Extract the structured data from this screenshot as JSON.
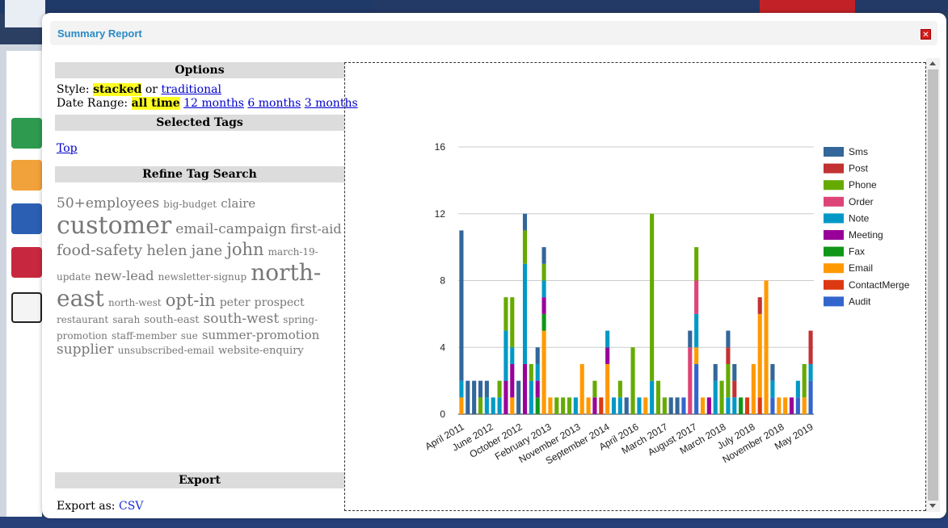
{
  "modal": {
    "title": "Summary Report",
    "close_label": "✕"
  },
  "options": {
    "heading": "Options",
    "style_label": "Style:",
    "style_selected": "stacked",
    "style_or": "or",
    "style_other": "traditional",
    "date_label": "Date Range:",
    "date_selected": "all time",
    "date_12": "12 months",
    "date_6": "6 months",
    "date_3": "3 months"
  },
  "selected_tags": {
    "heading": "Selected Tags",
    "top_link": "Top"
  },
  "refine": {
    "heading": "Refine Tag Search",
    "tags": [
      {
        "text": "50+employees",
        "size": 17
      },
      {
        "text": "big-budget",
        "size": 12
      },
      {
        "text": "claire",
        "size": 15
      },
      {
        "text": "customer",
        "size": 30
      },
      {
        "text": "email-campaign",
        "size": 17
      },
      {
        "text": "first-aid",
        "size": 16
      },
      {
        "text": "food-safety",
        "size": 19
      },
      {
        "text": "helen",
        "size": 18
      },
      {
        "text": "jane",
        "size": 18
      },
      {
        "text": "john",
        "size": 21
      },
      {
        "text": "march-19-update",
        "size": 12
      },
      {
        "text": "new-lead",
        "size": 16
      },
      {
        "text": "newsletter-signup",
        "size": 12
      },
      {
        "text": "north-east",
        "size": 28
      },
      {
        "text": "north-west",
        "size": 12
      },
      {
        "text": "opt-in",
        "size": 21
      },
      {
        "text": "peter",
        "size": 14
      },
      {
        "text": "prospect",
        "size": 14
      },
      {
        "text": "restaurant",
        "size": 12
      },
      {
        "text": "sarah",
        "size": 12
      },
      {
        "text": "south-east",
        "size": 13
      },
      {
        "text": "south-west",
        "size": 17
      },
      {
        "text": "spring-promotion",
        "size": 12
      },
      {
        "text": "staff-member",
        "size": 12
      },
      {
        "text": "sue",
        "size": 12
      },
      {
        "text": "summer-promotion",
        "size": 15
      },
      {
        "text": "supplier",
        "size": 17
      },
      {
        "text": "unsubscribed-email",
        "size": 12
      },
      {
        "text": "website-enquiry",
        "size": 13
      }
    ]
  },
  "export": {
    "heading": "Export",
    "label": "Export as:",
    "csv": "CSV"
  },
  "chart_data": {
    "type": "bar",
    "stacked": true,
    "y_ticks": [
      "0",
      "4",
      "8",
      "12",
      "16"
    ],
    "ylim": [
      0,
      16
    ],
    "x_tick_labels": [
      "April 2011",
      "June 2012",
      "October 2012",
      "February 2013",
      "November 2013",
      "September 2014",
      "April 2016",
      "March 2017",
      "August 2017",
      "March 2018",
      "July 2018",
      "November 2018",
      "May 2019"
    ],
    "colors": {
      "Sms": "#336699",
      "Post": "#c23232",
      "Phone": "#66aa00",
      "Order": "#dd4477",
      "Note": "#0099c6",
      "Meeting": "#990099",
      "Fax": "#109618",
      "Email": "#ff9900",
      "ContactMerge": "#dc3912",
      "Audit": "#3366cc"
    },
    "legend_order": [
      "Sms",
      "Post",
      "Phone",
      "Order",
      "Note",
      "Meeting",
      "Fax",
      "Email",
      "ContactMerge",
      "Audit"
    ],
    "legend_position": "right",
    "grid": true,
    "bars": [
      {
        "Email": 1,
        "Note": 1,
        "Sms": 9
      },
      {
        "Sms": 2
      },
      {
        "Sms": 2
      },
      {
        "Phone": 1,
        "Sms": 1
      },
      {
        "Note": 1,
        "Sms": 1
      },
      {
        "Note": 1
      },
      {
        "Note": 1,
        "Phone": 1
      },
      {
        "Meeting": 2,
        "Note": 3,
        "Phone": 2
      },
      {
        "Email": 1,
        "Meeting": 2,
        "Note": 1,
        "Phone": 3
      },
      {
        "Sms": 2
      },
      {
        "Meeting": 3,
        "Note": 6,
        "Phone": 2,
        "Sms": 1
      },
      {
        "Note": 2,
        "Phone": 1
      },
      {
        "Fax": 1,
        "Meeting": 1,
        "Note": 1,
        "Sms": 1
      },
      {
        "Email": 5,
        "Fax": 1,
        "Meeting": 1,
        "Note": 1,
        "Phone": 1,
        "Sms": 1
      },
      {
        "Email": 1
      },
      {
        "Phone": 1
      },
      {
        "Phone": 1
      },
      {
        "Phone": 1
      },
      {
        "Note": 1
      },
      {
        "Email": 3
      },
      {
        "Email": 1
      },
      {
        "Meeting": 1,
        "Phone": 1
      },
      {
        "ContactMerge": 1
      },
      {
        "Email": 3,
        "Meeting": 1,
        "Note": 1
      },
      {
        "Note": 1
      },
      {
        "Note": 1,
        "Phone": 1
      },
      {
        "Sms": 1
      },
      {
        "Phone": 4
      },
      {
        "Note": 1
      },
      {
        "Email": 1
      },
      {
        "Note": 2,
        "Phone": 10
      },
      {
        "Phone": 2
      },
      {
        "Phone": 1
      },
      {
        "Sms": 1
      },
      {
        "Sms": 1
      },
      {
        "Audit": 1
      },
      {
        "Order": 4,
        "Sms": 1
      },
      {
        "Audit": 3,
        "Email": 1,
        "Note": 2,
        "Order": 2,
        "Phone": 2
      },
      {
        "Email": 1
      },
      {
        "Meeting": 1
      },
      {
        "Note": 2,
        "Sms": 1
      },
      {
        "Phone": 2
      },
      {
        "Note": 1,
        "Phone": 2,
        "Post": 1,
        "Sms": 1
      },
      {
        "Note": 1,
        "Post": 1,
        "Sms": 1
      },
      {
        "Fax": 1
      },
      {
        "ContactMerge": 1
      },
      {
        "Email": 3
      },
      {
        "ContactMerge": 1,
        "Email": 5,
        "Post": 1
      },
      {
        "Email": 8
      },
      {
        "Audit": 1,
        "Note": 1,
        "Sms": 1
      },
      {
        "Email": 1
      },
      {
        "Email": 1
      },
      {
        "Meeting": 1
      },
      {
        "Audit": 1,
        "Note": 1
      },
      {
        "Email": 1,
        "Phone": 2
      },
      {
        "Audit": 2,
        "Note": 1,
        "Post": 2
      }
    ]
  }
}
